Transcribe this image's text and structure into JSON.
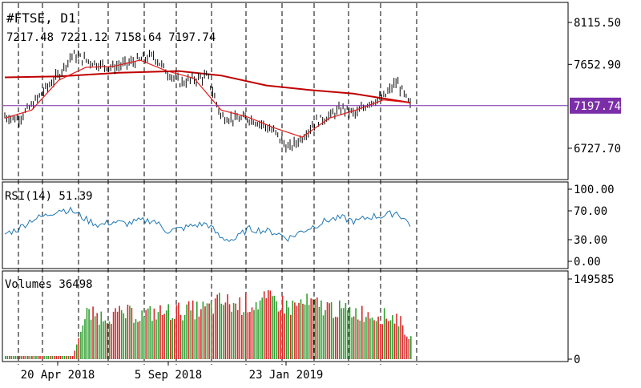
{
  "symbol_title": "#FTSE, D1",
  "ohlc_readout": "7217.48 7221.12 7158.64 7197.74",
  "current_price_tag": "7197.74",
  "colors": {
    "background": "#ffffff",
    "candles": "#000000",
    "ma_fast": "#e41a1a",
    "ma_slow": "#c00000",
    "current_price_line": "#7b2ea8",
    "price_tag_bg": "#7b2ea8",
    "rsi_line": "#1f78b4",
    "vol_up": "#2e9e2e",
    "vol_down": "#d62a2a",
    "grid_dash": "#000000"
  },
  "chart_data": [
    {
      "type": "line",
      "panel": "price",
      "title": "#FTSE, D1",
      "price_axis_ticks": [
        "8115.50",
        "7652.90",
        "6727.70"
      ],
      "ylim": [
        6400,
        8310
      ],
      "current_price": 7197.74,
      "x_tick_labels": [
        "20 Apr 2018",
        "5 Sep 2018",
        "23 Jan 2019"
      ],
      "series": [
        {
          "style": "candles",
          "x": [
            "2018-03-05",
            "2018-03-19",
            "2018-04-02",
            "2018-04-16",
            "2018-04-30",
            "2018-05-14",
            "2018-05-28",
            "2018-06-11",
            "2018-06-25",
            "2018-07-09",
            "2018-07-23",
            "2018-08-06",
            "2018-08-20",
            "2018-09-03",
            "2018-09-17",
            "2018-10-01",
            "2018-10-15",
            "2018-10-29",
            "2018-11-12",
            "2018-11-26",
            "2018-12-10",
            "2018-12-24",
            "2019-01-07",
            "2019-01-21",
            "2019-02-04",
            "2019-02-18",
            "2019-03-04",
            "2019-03-18",
            "2019-04-01",
            "2019-04-15",
            "2019-04-29"
          ],
          "y": [
            7080,
            7050,
            7200,
            7380,
            7540,
            7760,
            7700,
            7650,
            7620,
            7660,
            7700,
            7750,
            7570,
            7450,
            7490,
            7520,
            7080,
            7050,
            7060,
            7000,
            6900,
            6720,
            6850,
            7020,
            7080,
            7170,
            7100,
            7240,
            7280,
            7460,
            7197.74
          ]
        },
        {
          "style": "moving-average-fast",
          "x": [
            "2018-03-05",
            "2018-04-02",
            "2018-04-30",
            "2018-05-28",
            "2018-06-25",
            "2018-07-23",
            "2018-08-20",
            "2018-09-17",
            "2018-10-15",
            "2018-11-12",
            "2018-12-10",
            "2019-01-07",
            "2019-02-04",
            "2019-03-04",
            "2019-04-01",
            "2019-04-29"
          ],
          "y": [
            7060,
            7150,
            7480,
            7620,
            7630,
            7700,
            7580,
            7500,
            7150,
            7070,
            6950,
            6850,
            7060,
            7150,
            7260,
            7230
          ]
        },
        {
          "style": "moving-average-slow",
          "x": [
            "2018-03-05",
            "2018-05-01",
            "2018-07-01",
            "2018-09-01",
            "2018-10-15",
            "2018-12-01",
            "2019-01-15",
            "2019-03-01",
            "2019-04-29"
          ],
          "y": [
            7510,
            7520,
            7560,
            7580,
            7530,
            7420,
            7370,
            7330,
            7230
          ]
        }
      ]
    },
    {
      "type": "line",
      "panel": "rsi",
      "title": "RSI(14) 51.39",
      "axis_ticks": [
        "100.00",
        "70.00",
        "30.00",
        "0.00"
      ],
      "ylim": [
        0,
        100
      ],
      "levels": [
        70,
        30
      ],
      "x": [
        "2018-03-05",
        "2018-03-19",
        "2018-04-02",
        "2018-04-16",
        "2018-04-30",
        "2018-05-14",
        "2018-05-28",
        "2018-06-11",
        "2018-06-25",
        "2018-07-09",
        "2018-07-23",
        "2018-08-06",
        "2018-08-20",
        "2018-09-03",
        "2018-09-17",
        "2018-10-01",
        "2018-10-15",
        "2018-10-29",
        "2018-11-12",
        "2018-11-26",
        "2018-12-10",
        "2018-12-24",
        "2019-01-07",
        "2019-01-21",
        "2019-02-04",
        "2019-02-18",
        "2019-03-04",
        "2019-03-18",
        "2019-04-01",
        "2019-04-15",
        "2019-04-29"
      ],
      "y": [
        38,
        45,
        58,
        63,
        72,
        70,
        58,
        50,
        55,
        52,
        56,
        57,
        42,
        45,
        50,
        52,
        32,
        30,
        45,
        43,
        40,
        32,
        42,
        50,
        58,
        60,
        55,
        62,
        63,
        68,
        51.39
      ]
    },
    {
      "type": "bar",
      "panel": "volumes",
      "title": "Volumes 36498",
      "axis_ticks": [
        "149585",
        "0"
      ],
      "ylim": [
        0,
        149585
      ],
      "categories": [
        "2018-03-05",
        "2018-03-19",
        "2018-04-02",
        "2018-04-16",
        "2018-04-30",
        "2018-05-14",
        "2018-05-28",
        "2018-06-11",
        "2018-06-25",
        "2018-07-09",
        "2018-07-23",
        "2018-08-06",
        "2018-08-20",
        "2018-09-03",
        "2018-09-17",
        "2018-10-01",
        "2018-10-15",
        "2018-10-29",
        "2018-11-12",
        "2018-11-26",
        "2018-12-10",
        "2018-12-24",
        "2019-01-07",
        "2019-01-21",
        "2019-02-04",
        "2019-02-18",
        "2019-03-04",
        "2019-03-18",
        "2019-04-01",
        "2019-04-15",
        "2019-04-29"
      ],
      "values": [
        6000,
        6000,
        6000,
        6000,
        6000,
        6000,
        84000,
        80000,
        82000,
        85000,
        82000,
        86000,
        88000,
        90000,
        92000,
        94000,
        108000,
        100000,
        104000,
        106000,
        110000,
        96000,
        104000,
        100000,
        96000,
        90000,
        88000,
        84000,
        80000,
        78000,
        36498
      ]
    }
  ]
}
